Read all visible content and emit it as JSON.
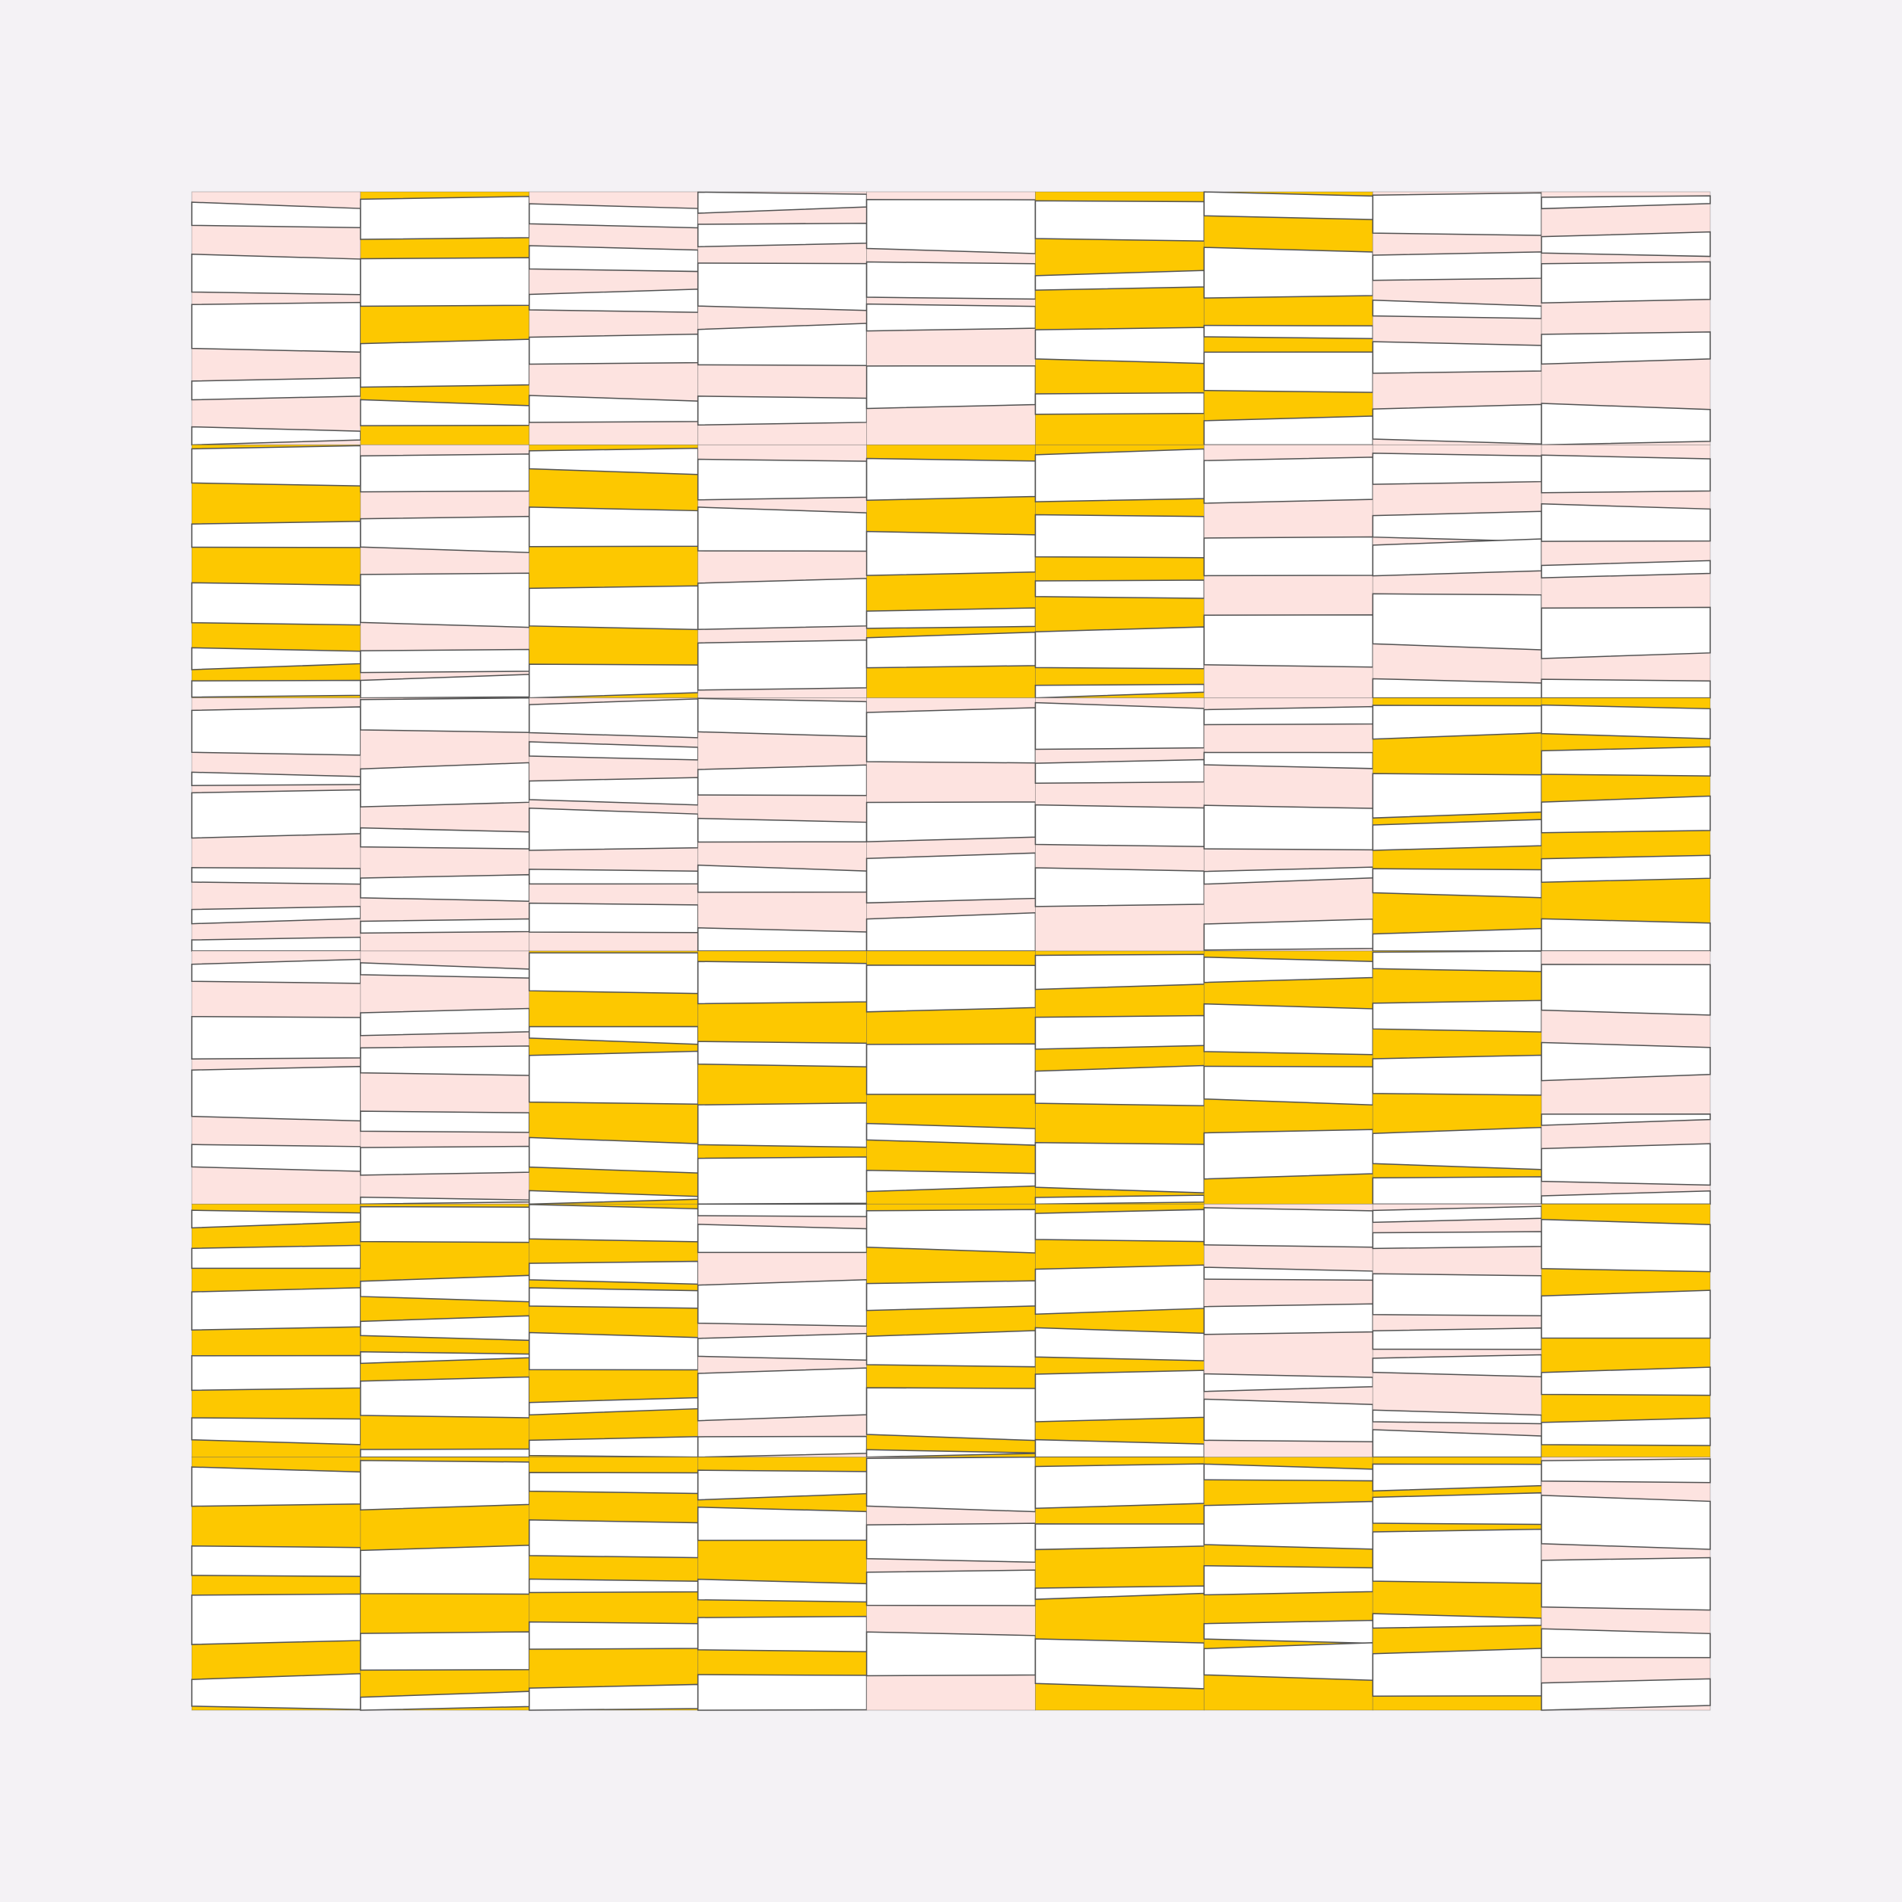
{
  "colors": {
    "background": "#f4f2f5",
    "pink": "#fde3e0",
    "yellow": "#fdc800",
    "white": "#ffffff",
    "outline": "#555555"
  },
  "grid": {
    "columns": 9,
    "rows": 6,
    "cell_themes": [
      [
        "P",
        "Y",
        "P",
        "P",
        "P",
        "Y",
        "Y",
        "P",
        "P"
      ],
      [
        "Y",
        "P",
        "Y",
        "P",
        "Y",
        "Y",
        "P",
        "P",
        "P"
      ],
      [
        "P",
        "P",
        "P",
        "P",
        "P",
        "P",
        "P",
        "Y",
        "Y"
      ],
      [
        "P",
        "P",
        "Y",
        "Y",
        "Y",
        "Y",
        "Y",
        "Y",
        "P"
      ],
      [
        "Y",
        "Y",
        "Y",
        "P",
        "Y",
        "Y",
        "P",
        "P",
        "Y"
      ],
      [
        "Y",
        "Y",
        "Y",
        "Y",
        "P",
        "Y",
        "Y",
        "Y",
        "P"
      ]
    ]
  }
}
